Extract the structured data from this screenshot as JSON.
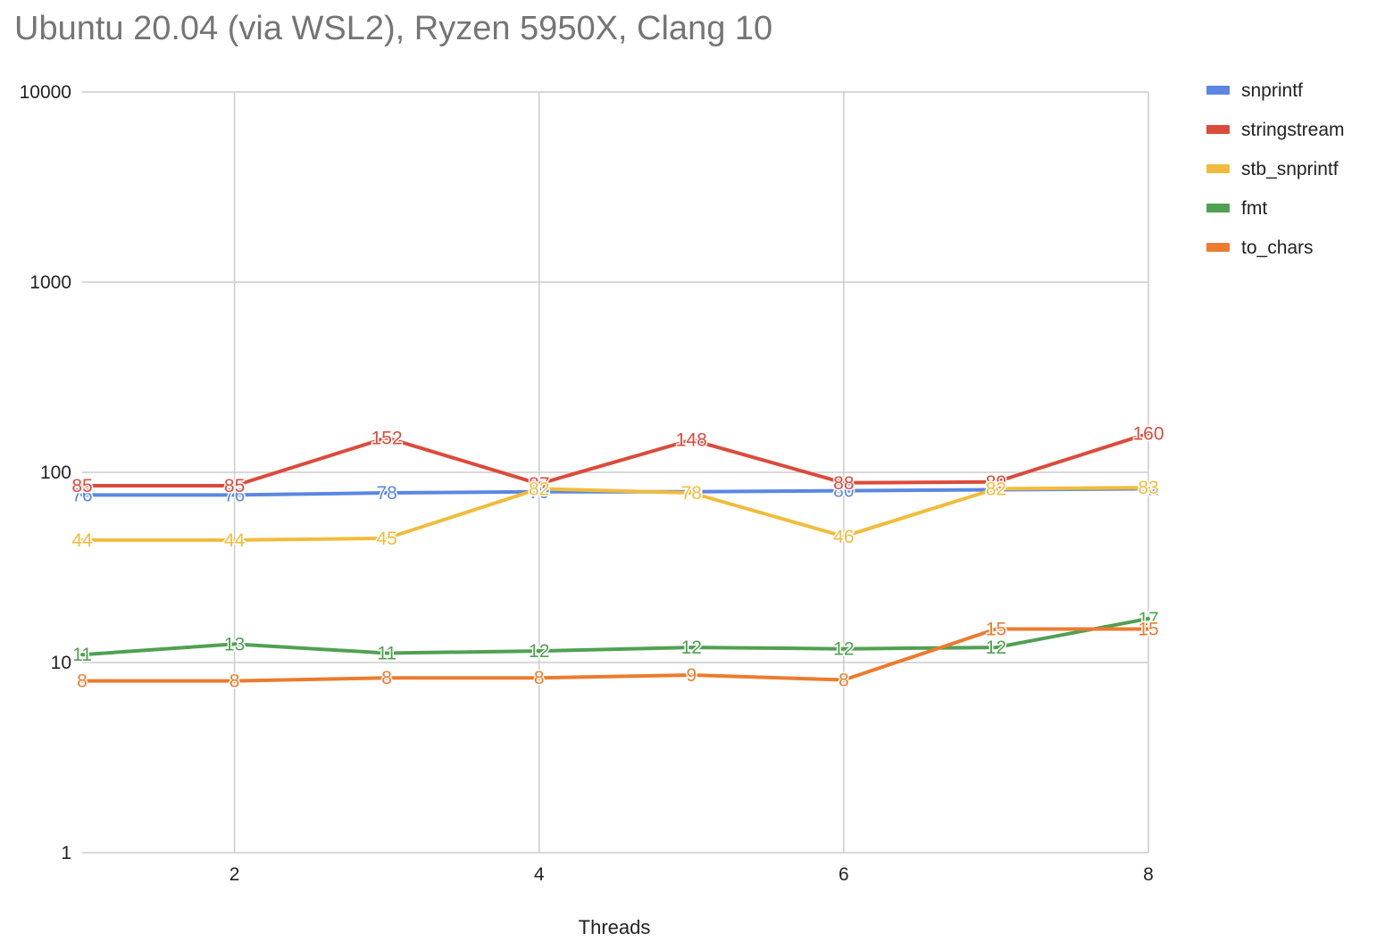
{
  "chart_data": {
    "type": "line",
    "title": "Ubuntu 20.04 (via WSL2), Ryzen 5950X, Clang 10",
    "xlabel": "Threads",
    "ylabel": "",
    "x": [
      1,
      2,
      3,
      4,
      5,
      6,
      7,
      8
    ],
    "xlim": [
      1,
      8
    ],
    "xticks": [
      2,
      4,
      6,
      8
    ],
    "y_scale": "log",
    "ylim": [
      1,
      10000
    ],
    "yticks": [
      1,
      10,
      100,
      1000,
      10000
    ],
    "grid": true,
    "legend_position": "right",
    "series": [
      {
        "name": "snprintf",
        "color": "#5b87e3",
        "values": [
          76,
          76,
          78,
          79,
          79,
          80,
          81,
          82
        ],
        "labels": [
          "76",
          "76",
          "78",
          "79",
          "79",
          "80",
          "81",
          "82"
        ]
      },
      {
        "name": "stringstream",
        "color": "#db4b3b",
        "values": [
          85,
          85,
          152,
          87,
          148,
          88,
          89,
          160
        ],
        "labels": [
          "85",
          "85",
          "152",
          "87",
          "148",
          "88",
          "89",
          "160"
        ]
      },
      {
        "name": "stb_snprintf",
        "color": "#f1bc3c",
        "values": [
          44,
          44,
          45,
          82,
          78,
          46,
          82,
          83
        ],
        "labels": [
          "44",
          "44",
          "45",
          "82",
          "78",
          "46",
          "82",
          "83"
        ]
      },
      {
        "name": "fmt",
        "color": "#51a052",
        "values": [
          11,
          12.5,
          11.2,
          11.5,
          12,
          11.8,
          12,
          17
        ],
        "labels": [
          "11",
          "13",
          "11",
          "12",
          "12",
          "12",
          "12",
          "17"
        ]
      },
      {
        "name": "to_chars",
        "color": "#ec7b2e",
        "values": [
          8,
          8,
          8.3,
          8.3,
          8.6,
          8.1,
          15,
          15
        ],
        "labels": [
          "8",
          "8",
          "8",
          "8",
          "9",
          "8",
          "15",
          "15"
        ]
      }
    ]
  }
}
